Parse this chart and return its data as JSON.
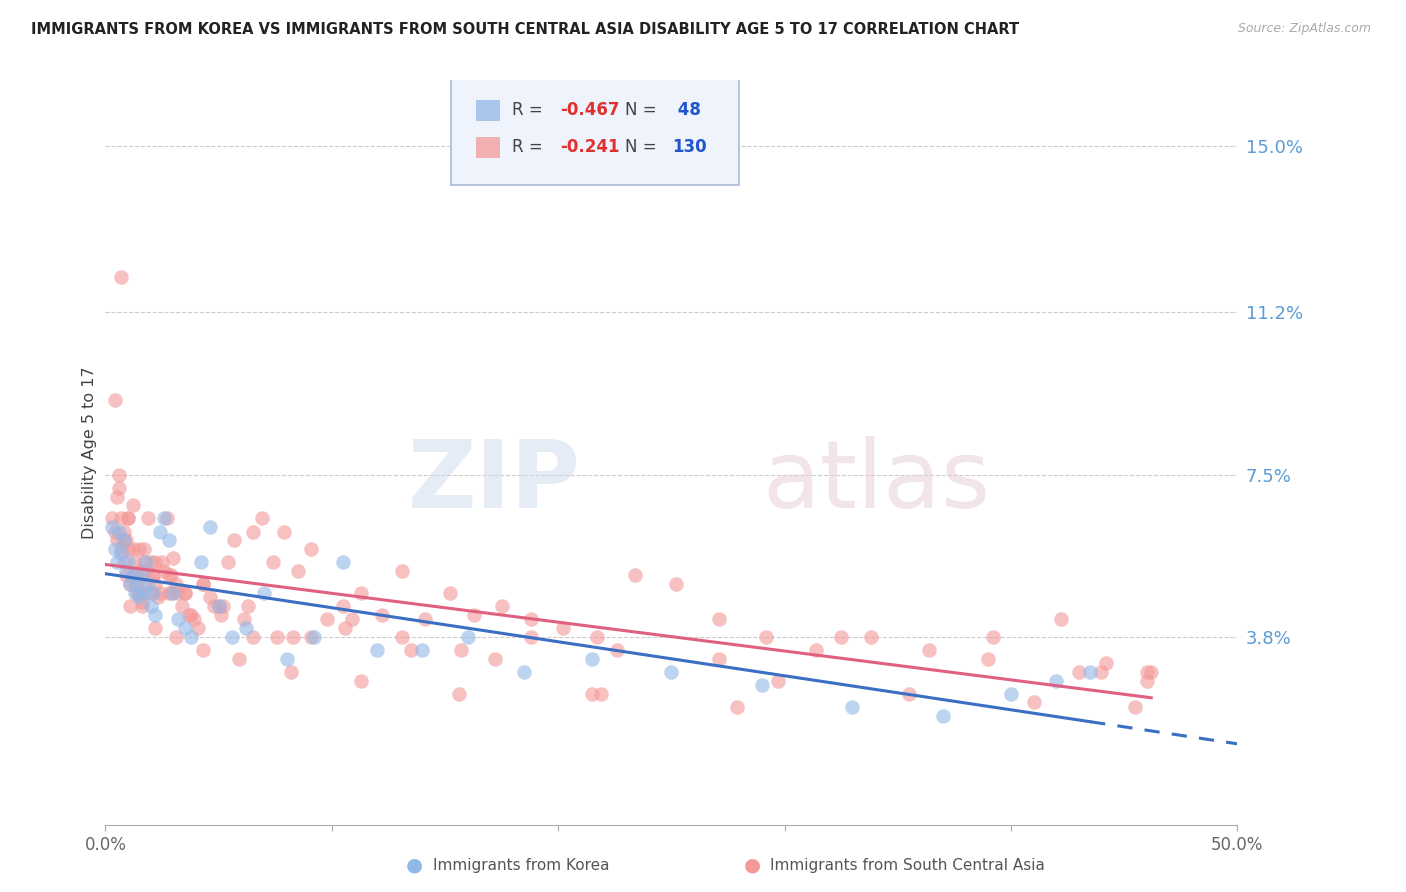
{
  "title": "IMMIGRANTS FROM KOREA VS IMMIGRANTS FROM SOUTH CENTRAL ASIA DISABILITY AGE 5 TO 17 CORRELATION CHART",
  "source": "Source: ZipAtlas.com",
  "ylabel": "Disability Age 5 to 17",
  "xlim": [
    0.0,
    0.5
  ],
  "ylim": [
    -0.005,
    0.165
  ],
  "xticks": [
    0.0,
    0.1,
    0.2,
    0.3,
    0.4,
    0.5
  ],
  "xticklabels": [
    "0.0%",
    "",
    "",
    "",
    "",
    "50.0%"
  ],
  "ytick_right_vals": [
    0.15,
    0.112,
    0.075,
    0.038
  ],
  "ytick_right_labels": [
    "15.0%",
    "11.2%",
    "7.5%",
    "3.8%"
  ],
  "korea_R": -0.467,
  "korea_N": 48,
  "sca_R": -0.241,
  "sca_N": 130,
  "watermark": "ZIPatlas",
  "korea_color": "#92b8e8",
  "sca_color": "#f49898",
  "korea_line_color": "#3a6fc4",
  "sca_line_color": "#e06080",
  "korea_x": [
    0.003,
    0.004,
    0.005,
    0.006,
    0.007,
    0.008,
    0.009,
    0.01,
    0.011,
    0.012,
    0.013,
    0.014,
    0.015,
    0.016,
    0.017,
    0.018,
    0.019,
    0.02,
    0.021,
    0.022,
    0.024,
    0.026,
    0.028,
    0.03,
    0.032,
    0.035,
    0.038,
    0.042,
    0.046,
    0.05,
    0.056,
    0.062,
    0.07,
    0.08,
    0.092,
    0.105,
    0.12,
    0.14,
    0.16,
    0.185,
    0.215,
    0.25,
    0.29,
    0.33,
    0.37,
    0.4,
    0.42,
    0.435
  ],
  "korea_y": [
    0.063,
    0.058,
    0.055,
    0.062,
    0.057,
    0.06,
    0.053,
    0.055,
    0.05,
    0.052,
    0.048,
    0.05,
    0.047,
    0.052,
    0.048,
    0.055,
    0.05,
    0.045,
    0.048,
    0.043,
    0.062,
    0.065,
    0.06,
    0.048,
    0.042,
    0.04,
    0.038,
    0.055,
    0.063,
    0.045,
    0.038,
    0.04,
    0.048,
    0.033,
    0.038,
    0.055,
    0.035,
    0.035,
    0.038,
    0.03,
    0.033,
    0.03,
    0.027,
    0.022,
    0.02,
    0.025,
    0.028,
    0.03
  ],
  "sca_x": [
    0.003,
    0.004,
    0.005,
    0.006,
    0.007,
    0.007,
    0.008,
    0.008,
    0.009,
    0.009,
    0.01,
    0.01,
    0.011,
    0.012,
    0.012,
    0.013,
    0.013,
    0.014,
    0.015,
    0.015,
    0.016,
    0.017,
    0.017,
    0.018,
    0.019,
    0.02,
    0.02,
    0.021,
    0.022,
    0.023,
    0.024,
    0.025,
    0.026,
    0.027,
    0.028,
    0.029,
    0.03,
    0.031,
    0.032,
    0.034,
    0.035,
    0.037,
    0.039,
    0.041,
    0.043,
    0.046,
    0.048,
    0.051,
    0.054,
    0.057,
    0.061,
    0.065,
    0.069,
    0.074,
    0.079,
    0.085,
    0.091,
    0.098,
    0.105,
    0.113,
    0.122,
    0.131,
    0.141,
    0.152,
    0.163,
    0.175,
    0.188,
    0.202,
    0.217,
    0.234,
    0.252,
    0.271,
    0.292,
    0.314,
    0.338,
    0.364,
    0.392,
    0.422,
    0.442,
    0.46,
    0.005,
    0.008,
    0.012,
    0.017,
    0.022,
    0.028,
    0.035,
    0.043,
    0.052,
    0.063,
    0.076,
    0.091,
    0.109,
    0.131,
    0.157,
    0.188,
    0.226,
    0.271,
    0.325,
    0.39,
    0.44,
    0.462,
    0.006,
    0.01,
    0.015,
    0.021,
    0.029,
    0.038,
    0.05,
    0.065,
    0.083,
    0.106,
    0.135,
    0.172,
    0.219,
    0.279,
    0.355,
    0.43,
    0.46,
    0.004,
    0.007,
    0.011,
    0.016,
    0.022,
    0.031,
    0.043,
    0.059,
    0.082,
    0.113,
    0.156,
    0.215,
    0.297,
    0.41,
    0.455
  ],
  "sca_y": [
    0.065,
    0.062,
    0.06,
    0.072,
    0.058,
    0.065,
    0.055,
    0.062,
    0.052,
    0.06,
    0.058,
    0.065,
    0.05,
    0.052,
    0.058,
    0.05,
    0.055,
    0.048,
    0.048,
    0.053,
    0.046,
    0.05,
    0.055,
    0.053,
    0.065,
    0.048,
    0.055,
    0.052,
    0.05,
    0.047,
    0.048,
    0.055,
    0.053,
    0.065,
    0.048,
    0.052,
    0.056,
    0.05,
    0.048,
    0.045,
    0.048,
    0.043,
    0.042,
    0.04,
    0.05,
    0.047,
    0.045,
    0.043,
    0.055,
    0.06,
    0.042,
    0.062,
    0.065,
    0.055,
    0.062,
    0.053,
    0.058,
    0.042,
    0.045,
    0.048,
    0.043,
    0.053,
    0.042,
    0.048,
    0.043,
    0.045,
    0.042,
    0.04,
    0.038,
    0.052,
    0.05,
    0.042,
    0.038,
    0.035,
    0.038,
    0.035,
    0.038,
    0.042,
    0.032,
    0.03,
    0.07,
    0.06,
    0.068,
    0.058,
    0.055,
    0.052,
    0.048,
    0.05,
    0.045,
    0.045,
    0.038,
    0.038,
    0.042,
    0.038,
    0.035,
    0.038,
    0.035,
    0.033,
    0.038,
    0.033,
    0.03,
    0.03,
    0.075,
    0.065,
    0.058,
    0.052,
    0.048,
    0.043,
    0.045,
    0.038,
    0.038,
    0.04,
    0.035,
    0.033,
    0.025,
    0.022,
    0.025,
    0.03,
    0.028,
    0.092,
    0.12,
    0.045,
    0.045,
    0.04,
    0.038,
    0.035,
    0.033,
    0.03,
    0.028,
    0.025,
    0.025,
    0.028,
    0.023,
    0.022
  ]
}
